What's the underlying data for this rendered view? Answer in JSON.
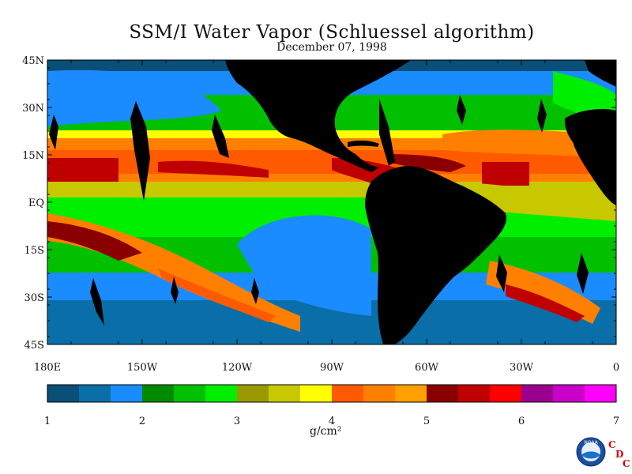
{
  "title": "SSM/I Water Vapor (Schluessel algorithm)",
  "date": "December 07, 1998",
  "lat_labels": [
    "45N",
    "30N",
    "15N",
    "EQ",
    "15S",
    "30S",
    "45S"
  ],
  "lon_labels": [
    "180E",
    "150W",
    "120W",
    "90W",
    "60W",
    "30W",
    "0"
  ],
  "colorbar": {
    "ticks": [
      "1",
      "2",
      "3",
      "4",
      "5",
      "6",
      "7"
    ],
    "units": "g/cm²",
    "colors": [
      "#0a4f78",
      "#0a6fa8",
      "#1a8cff",
      "#008a00",
      "#00c000",
      "#00ee00",
      "#9a9a00",
      "#c8c800",
      "#ffff00",
      "#ff5a00",
      "#ff8000",
      "#ffa000",
      "#8a0000",
      "#c00000",
      "#ff0000",
      "#9a0090",
      "#c800c8",
      "#ff00ff"
    ]
  },
  "logo": {
    "noaa": "NOAA",
    "cdc": [
      "C",
      "D",
      "C"
    ]
  }
}
